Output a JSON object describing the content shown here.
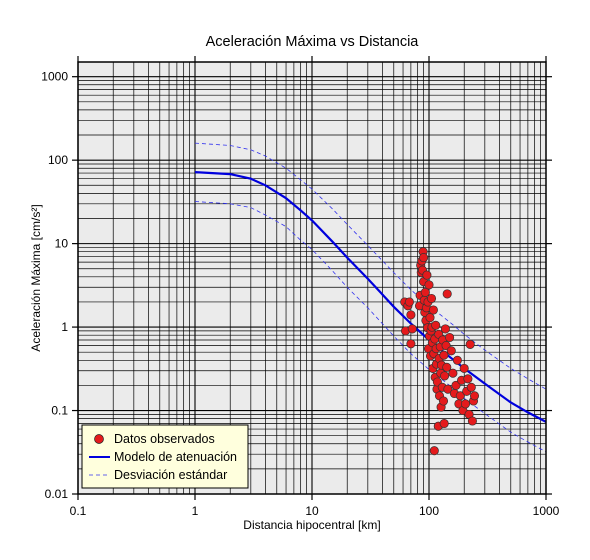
{
  "chart_data": {
    "type": "scatter",
    "title": "Aceleración Máxima vs Distancia",
    "xlabel": "Distancia hipocentral [km]",
    "ylabel": "Aceleración Máxima [cm/s²]",
    "xscale": "log",
    "yscale": "log",
    "xlim": [
      0.1,
      1000
    ],
    "ylim": [
      0.01,
      1500
    ],
    "xticks": [
      "0.1",
      "1",
      "10",
      "100",
      "1000"
    ],
    "yticks": [
      "0.01",
      "0.1",
      "1",
      "10",
      "100",
      "1000"
    ],
    "grid": true,
    "legend_position": "bottom-left",
    "colors": {
      "observed": "#e41a1c",
      "model": "#0000dd",
      "std": "#3333ee",
      "plot_bg": "#ebebeb",
      "legend_bg": "#ffffdd"
    },
    "series": [
      {
        "name": "Datos observados",
        "kind": "points",
        "points": [
          [
            62,
            2.0
          ],
          [
            63,
            0.9
          ],
          [
            66,
            1.8
          ],
          [
            68,
            2.0
          ],
          [
            70,
            1.4
          ],
          [
            70,
            0.63
          ],
          [
            72,
            0.95
          ],
          [
            83,
            1.8
          ],
          [
            84,
            2.4
          ],
          [
            85,
            5.5
          ],
          [
            86,
            4.5
          ],
          [
            87,
            6.2
          ],
          [
            88,
            4.8
          ],
          [
            89,
            8.0
          ],
          [
            90,
            6.8
          ],
          [
            90,
            3.5
          ],
          [
            91,
            2.1
          ],
          [
            92,
            1.5
          ],
          [
            93,
            2.6
          ],
          [
            94,
            1.2
          ],
          [
            95,
            1.7
          ],
          [
            96,
            4.2
          ],
          [
            97,
            0.98
          ],
          [
            98,
            2.0
          ],
          [
            99,
            0.55
          ],
          [
            100,
            3.2
          ],
          [
            101,
            0.78
          ],
          [
            102,
            1.3
          ],
          [
            103,
            0.45
          ],
          [
            104,
            0.9
          ],
          [
            105,
            2.2
          ],
          [
            106,
            1.0
          ],
          [
            107,
            0.65
          ],
          [
            108,
            0.32
          ],
          [
            109,
            1.6
          ],
          [
            110,
            0.48
          ],
          [
            111,
            0.033
          ],
          [
            112,
            0.72
          ],
          [
            113,
            0.25
          ],
          [
            114,
            1.05
          ],
          [
            115,
            0.55
          ],
          [
            116,
            0.36
          ],
          [
            117,
            0.18
          ],
          [
            118,
            0.22
          ],
          [
            120,
            0.065
          ],
          [
            121,
            0.82
          ],
          [
            122,
            0.42
          ],
          [
            123,
            0.15
          ],
          [
            125,
            0.58
          ],
          [
            126,
            0.28
          ],
          [
            127,
            0.11
          ],
          [
            128,
            0.35
          ],
          [
            130,
            0.19
          ],
          [
            131,
            0.7
          ],
          [
            133,
            0.13
          ],
          [
            134,
            0.46
          ],
          [
            135,
            0.07
          ],
          [
            136,
            0.26
          ],
          [
            138,
            0.95
          ],
          [
            140,
            0.6
          ],
          [
            142,
            0.33
          ],
          [
            143,
            2.5
          ],
          [
            145,
            0.18
          ],
          [
            150,
            0.75
          ],
          [
            155,
            0.52
          ],
          [
            160,
            0.28
          ],
          [
            165,
            0.16
          ],
          [
            170,
            0.2
          ],
          [
            175,
            0.4
          ],
          [
            180,
            0.12
          ],
          [
            185,
            0.15
          ],
          [
            190,
            0.23
          ],
          [
            195,
            0.1
          ],
          [
            200,
            0.32
          ],
          [
            205,
            0.12
          ],
          [
            210,
            0.17
          ],
          [
            215,
            0.24
          ],
          [
            220,
            0.09
          ],
          [
            225,
            0.62
          ],
          [
            230,
            0.19
          ],
          [
            235,
            0.075
          ],
          [
            240,
            0.13
          ],
          [
            245,
            0.15
          ]
        ]
      },
      {
        "name": "Modelo de atenuación",
        "kind": "line",
        "x": [
          1,
          2,
          3,
          4,
          6,
          8,
          10,
          15,
          20,
          30,
          50,
          70,
          100,
          150,
          200,
          300,
          500,
          700,
          1000
        ],
        "y": [
          72,
          68,
          60,
          50,
          35,
          25,
          19,
          10.5,
          6.8,
          3.8,
          1.75,
          1.1,
          0.7,
          0.44,
          0.32,
          0.21,
          0.125,
          0.095,
          0.073
        ]
      },
      {
        "name": "Desviación estándar",
        "kind": "dashed-pair",
        "x": [
          1,
          2,
          3,
          4,
          6,
          8,
          10,
          15,
          20,
          30,
          50,
          70,
          100,
          150,
          200,
          300,
          500,
          700,
          1000
        ],
        "upper": [
          160,
          150,
          133,
          112,
          80,
          58,
          45,
          26,
          17,
          9.5,
          4.5,
          2.8,
          1.8,
          1.15,
          0.82,
          0.53,
          0.32,
          0.24,
          0.18
        ],
        "lower": [
          32,
          30,
          27,
          22,
          16,
          11,
          8.5,
          4.7,
          3.0,
          1.7,
          0.78,
          0.48,
          0.31,
          0.2,
          0.14,
          0.092,
          0.055,
          0.042,
          0.032
        ]
      }
    ]
  }
}
